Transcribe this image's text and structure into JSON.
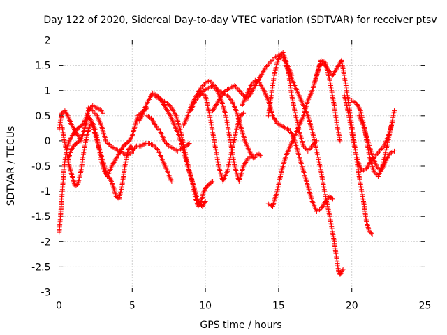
{
  "chart_data": {
    "type": "scatter",
    "title": "Day 122 of 2020, Sidereal Day-to-day VTEC variation (SDTVAR) for receiver ptsv",
    "xlabel": "GPS time / hours",
    "ylabel": "SDTVAR / TECUs",
    "xlim": [
      0,
      25
    ],
    "ylim": [
      -3,
      2
    ],
    "xticks": [
      0,
      5,
      10,
      15,
      20,
      25
    ],
    "xtick_labels": [
      "0",
      "5",
      "10",
      "15",
      "20",
      "25"
    ],
    "yticks": [
      -3,
      -2.5,
      -2,
      -1.5,
      -1,
      -0.5,
      0,
      0.5,
      1,
      1.5,
      2
    ],
    "ytick_labels": [
      "-3",
      "-2.5",
      "-2",
      "-1.5",
      "-1",
      "-0.5",
      "0",
      "0.5",
      "1",
      "1.5",
      "2"
    ],
    "grid": true,
    "marker": "+",
    "color": "#ff0000",
    "series": [
      {
        "name": "trace-1",
        "x": [
          0.0,
          0.1,
          0.2,
          0.4,
          0.6,
          0.8,
          1.0,
          1.2,
          1.4,
          1.5
        ],
        "y": [
          0.2,
          0.4,
          0.55,
          0.6,
          0.5,
          0.35,
          0.25,
          0.15,
          0.05,
          0.0
        ]
      },
      {
        "name": "trace-2",
        "x": [
          0.0,
          0.1,
          0.2,
          0.3,
          0.4,
          0.5,
          0.7,
          0.9,
          1.1,
          1.3,
          1.5,
          1.7,
          1.9,
          2.0,
          2.3,
          2.6,
          2.9,
          3.0
        ],
        "y": [
          -1.85,
          -1.5,
          -1.1,
          -0.7,
          -0.4,
          -0.2,
          0.0,
          0.1,
          0.2,
          0.25,
          0.3,
          0.35,
          0.5,
          0.6,
          0.7,
          0.65,
          0.6,
          0.55
        ]
      },
      {
        "name": "trace-3",
        "x": [
          0.2,
          0.3,
          0.5,
          0.7,
          0.9,
          1.1,
          1.3,
          1.5,
          1.7,
          1.9,
          2.1,
          2.3,
          2.5,
          2.7,
          2.9,
          3.1,
          3.3,
          3.5,
          3.7,
          3.9,
          4.1,
          4.3,
          4.5,
          4.7,
          4.9,
          5.1
        ],
        "y": [
          0.3,
          0.1,
          -0.2,
          -0.5,
          -0.7,
          -0.9,
          -0.85,
          -0.6,
          -0.2,
          0.1,
          0.3,
          0.35,
          0.2,
          -0.1,
          -0.4,
          -0.6,
          -0.7,
          -0.75,
          -0.9,
          -1.1,
          -1.15,
          -0.9,
          -0.5,
          -0.2,
          -0.1,
          -0.2
        ]
      },
      {
        "name": "trace-4",
        "x": [
          0.6,
          0.8,
          1.0,
          1.2,
          1.4,
          1.6,
          1.8,
          2.0,
          2.2,
          2.4,
          2.6,
          2.8,
          3.0,
          3.2,
          3.4,
          3.6,
          3.8,
          4.0,
          4.2,
          4.4,
          4.6,
          4.8,
          5.0,
          5.2,
          5.4,
          5.6,
          5.8,
          6.0
        ],
        "y": [
          -0.4,
          -0.2,
          -0.1,
          -0.05,
          0.0,
          0.1,
          0.3,
          0.5,
          0.4,
          0.2,
          0.0,
          -0.2,
          -0.4,
          -0.6,
          -0.65,
          -0.5,
          -0.4,
          -0.3,
          -0.2,
          -0.1,
          -0.05,
          0.0,
          0.1,
          0.3,
          0.5,
          0.55,
          0.6,
          0.65
        ]
      },
      {
        "name": "trace-5",
        "x": [
          2.0,
          2.3,
          2.6,
          2.9,
          3.2,
          3.5,
          3.8,
          4.1,
          4.4,
          4.7,
          5.0,
          5.3,
          5.6,
          5.9,
          6.2,
          6.5,
          6.8,
          7.1,
          7.4,
          7.6,
          7.7
        ],
        "y": [
          0.65,
          0.6,
          0.5,
          0.3,
          0.0,
          -0.1,
          -0.15,
          -0.2,
          -0.25,
          -0.3,
          -0.2,
          -0.1,
          -0.1,
          -0.05,
          -0.05,
          -0.1,
          -0.2,
          -0.4,
          -0.6,
          -0.75,
          -0.8
        ]
      },
      {
        "name": "trace-6",
        "x": [
          5.5,
          5.8,
          6.1,
          6.4,
          6.7,
          7.0,
          7.3,
          7.6,
          7.9,
          8.2,
          8.5,
          8.8,
          9.1,
          9.3,
          9.5,
          9.7,
          9.9,
          10.1,
          10.3,
          10.5
        ],
        "y": [
          0.4,
          0.6,
          0.8,
          0.95,
          0.9,
          0.8,
          0.65,
          0.5,
          0.3,
          0.1,
          -0.2,
          -0.5,
          -0.8,
          -1.1,
          -1.3,
          -1.2,
          -1.0,
          -0.9,
          -0.85,
          -0.8
        ]
      },
      {
        "name": "trace-7",
        "x": [
          6.5,
          6.8,
          7.1,
          7.4,
          7.7,
          8.0,
          8.3,
          8.6,
          8.9,
          9.2,
          9.4,
          9.6,
          9.8,
          10.0
        ],
        "y": [
          0.9,
          0.85,
          0.8,
          0.75,
          0.65,
          0.5,
          0.2,
          -0.2,
          -0.6,
          -0.9,
          -1.1,
          -1.25,
          -1.3,
          -1.2
        ]
      },
      {
        "name": "trace-8",
        "x": [
          6.0,
          6.3,
          6.6,
          6.9,
          7.2,
          7.5,
          7.8,
          8.1,
          8.4,
          8.7,
          8.9
        ],
        "y": [
          0.5,
          0.45,
          0.3,
          0.2,
          0.0,
          -0.1,
          -0.15,
          -0.2,
          -0.15,
          -0.1,
          -0.05
        ]
      },
      {
        "name": "trace-9",
        "x": [
          8.5,
          8.8,
          9.1,
          9.4,
          9.7,
          10.0,
          10.3,
          10.6,
          10.9,
          11.2,
          11.5,
          11.8,
          12.1,
          12.4,
          12.6
        ],
        "y": [
          0.3,
          0.5,
          0.75,
          0.9,
          0.95,
          0.9,
          0.5,
          0.0,
          -0.5,
          -0.8,
          -0.6,
          -0.2,
          0.2,
          0.5,
          0.55
        ]
      },
      {
        "name": "trace-10",
        "x": [
          9.0,
          9.3,
          9.6,
          9.9,
          10.2,
          10.5,
          10.8,
          11.1,
          11.4,
          11.7,
          12.0,
          12.3,
          12.6,
          12.9,
          13.2,
          13.4
        ],
        "y": [
          0.6,
          0.8,
          0.9,
          1.0,
          1.05,
          1.1,
          1.0,
          0.8,
          0.5,
          0.0,
          -0.5,
          -0.8,
          -0.5,
          -0.35,
          -0.3,
          -0.3
        ]
      },
      {
        "name": "trace-11",
        "x": [
          9.4,
          9.7,
          10.0,
          10.3,
          10.6,
          10.9,
          11.2,
          11.5,
          11.8,
          12.1,
          12.4,
          12.7,
          13.0,
          13.3,
          13.6,
          13.8
        ],
        "y": [
          0.9,
          1.05,
          1.15,
          1.2,
          1.1,
          1.0,
          0.95,
          0.9,
          0.8,
          0.6,
          0.3,
          0.0,
          -0.2,
          -0.35,
          -0.25,
          -0.3
        ]
      },
      {
        "name": "trace-12",
        "x": [
          10.5,
          10.8,
          11.1,
          11.4,
          11.7,
          12.0,
          12.3,
          12.6,
          12.9,
          13.2,
          13.5,
          13.8,
          14.1,
          14.4,
          14.7,
          15.0,
          15.3,
          15.6,
          15.9
        ],
        "y": [
          0.6,
          0.75,
          0.9,
          1.0,
          1.05,
          1.1,
          1.0,
          0.9,
          0.85,
          1.0,
          1.15,
          1.3,
          1.45,
          1.55,
          1.65,
          1.7,
          1.65,
          1.5,
          1.3
        ]
      },
      {
        "name": "trace-13",
        "x": [
          12.5,
          12.8,
          13.1,
          13.4,
          13.7,
          14.0,
          14.3,
          14.6,
          14.9,
          15.2,
          15.5,
          15.8,
          16.1,
          16.4,
          16.7,
          17.0,
          17.3,
          17.6,
          17.9,
          18.2,
          18.5,
          18.7
        ],
        "y": [
          0.7,
          0.9,
          1.1,
          1.2,
          1.15,
          1.0,
          0.8,
          0.5,
          0.35,
          0.3,
          0.25,
          0.2,
          0.0,
          -0.3,
          -0.6,
          -0.9,
          -1.2,
          -1.4,
          -1.35,
          -1.2,
          -1.1,
          -1.15
        ]
      },
      {
        "name": "trace-14",
        "x": [
          14.3,
          14.5,
          14.7,
          14.9,
          15.1,
          15.3,
          15.5,
          15.7,
          15.9,
          16.1,
          16.4,
          16.7,
          17.0,
          17.3,
          17.6
        ],
        "y": [
          0.5,
          0.9,
          1.3,
          1.55,
          1.7,
          1.75,
          1.6,
          1.3,
          0.9,
          0.6,
          0.2,
          -0.1,
          -0.2,
          -0.1,
          0.0
        ]
      },
      {
        "name": "trace-15",
        "x": [
          14.3,
          14.6,
          14.9,
          15.2,
          15.5,
          15.8,
          16.1,
          16.4,
          16.7,
          17.0,
          17.3,
          17.6,
          17.9,
          18.2,
          18.5,
          18.8,
          19.0,
          19.2
        ],
        "y": [
          -1.25,
          -1.3,
          -1.0,
          -0.6,
          -0.3,
          -0.1,
          0.1,
          0.3,
          0.5,
          0.8,
          1.0,
          1.3,
          1.6,
          1.55,
          1.2,
          0.7,
          0.3,
          0.0
        ]
      },
      {
        "name": "trace-16",
        "x": [
          15.5,
          15.8,
          16.1,
          16.4,
          16.7,
          17.0,
          17.3,
          17.6,
          17.9,
          18.2,
          18.5,
          18.8,
          19.0,
          19.1,
          19.2,
          19.4
        ],
        "y": [
          1.5,
          1.3,
          1.1,
          0.9,
          0.7,
          0.5,
          0.2,
          -0.2,
          -0.6,
          -1.1,
          -1.5,
          -2.0,
          -2.4,
          -2.6,
          -2.65,
          -2.55
        ]
      },
      {
        "name": "trace-17",
        "x": [
          17.5,
          17.8,
          18.1,
          18.4,
          18.7,
          19.0,
          19.3,
          19.6,
          19.9,
          20.2,
          20.5,
          20.8,
          21.0,
          21.2,
          21.4
        ],
        "y": [
          1.2,
          1.5,
          1.55,
          1.4,
          1.3,
          1.45,
          1.6,
          1.1,
          0.5,
          -0.1,
          -0.7,
          -1.2,
          -1.6,
          -1.8,
          -1.85
        ]
      },
      {
        "name": "trace-18",
        "x": [
          19.5,
          19.8,
          20.1,
          20.4,
          20.7,
          21.0,
          21.3,
          21.6,
          21.9,
          22.2,
          22.5,
          22.8
        ],
        "y": [
          0.9,
          0.5,
          0.0,
          -0.4,
          -0.6,
          -0.55,
          -0.4,
          -0.3,
          -0.2,
          -0.1,
          0.1,
          0.4
        ]
      },
      {
        "name": "trace-19",
        "x": [
          20.0,
          20.3,
          20.6,
          20.9,
          21.2,
          21.5,
          21.8,
          22.1,
          22.4,
          22.7,
          22.9
        ],
        "y": [
          0.8,
          0.75,
          0.6,
          0.2,
          -0.3,
          -0.6,
          -0.7,
          -0.5,
          -0.1,
          0.3,
          0.6
        ]
      },
      {
        "name": "trace-20",
        "x": [
          20.5,
          20.8,
          21.1,
          21.4,
          21.7,
          22.0,
          22.3,
          22.6,
          22.9
        ],
        "y": [
          0.5,
          0.3,
          0.0,
          -0.3,
          -0.5,
          -0.6,
          -0.4,
          -0.25,
          -0.2
        ]
      }
    ]
  }
}
